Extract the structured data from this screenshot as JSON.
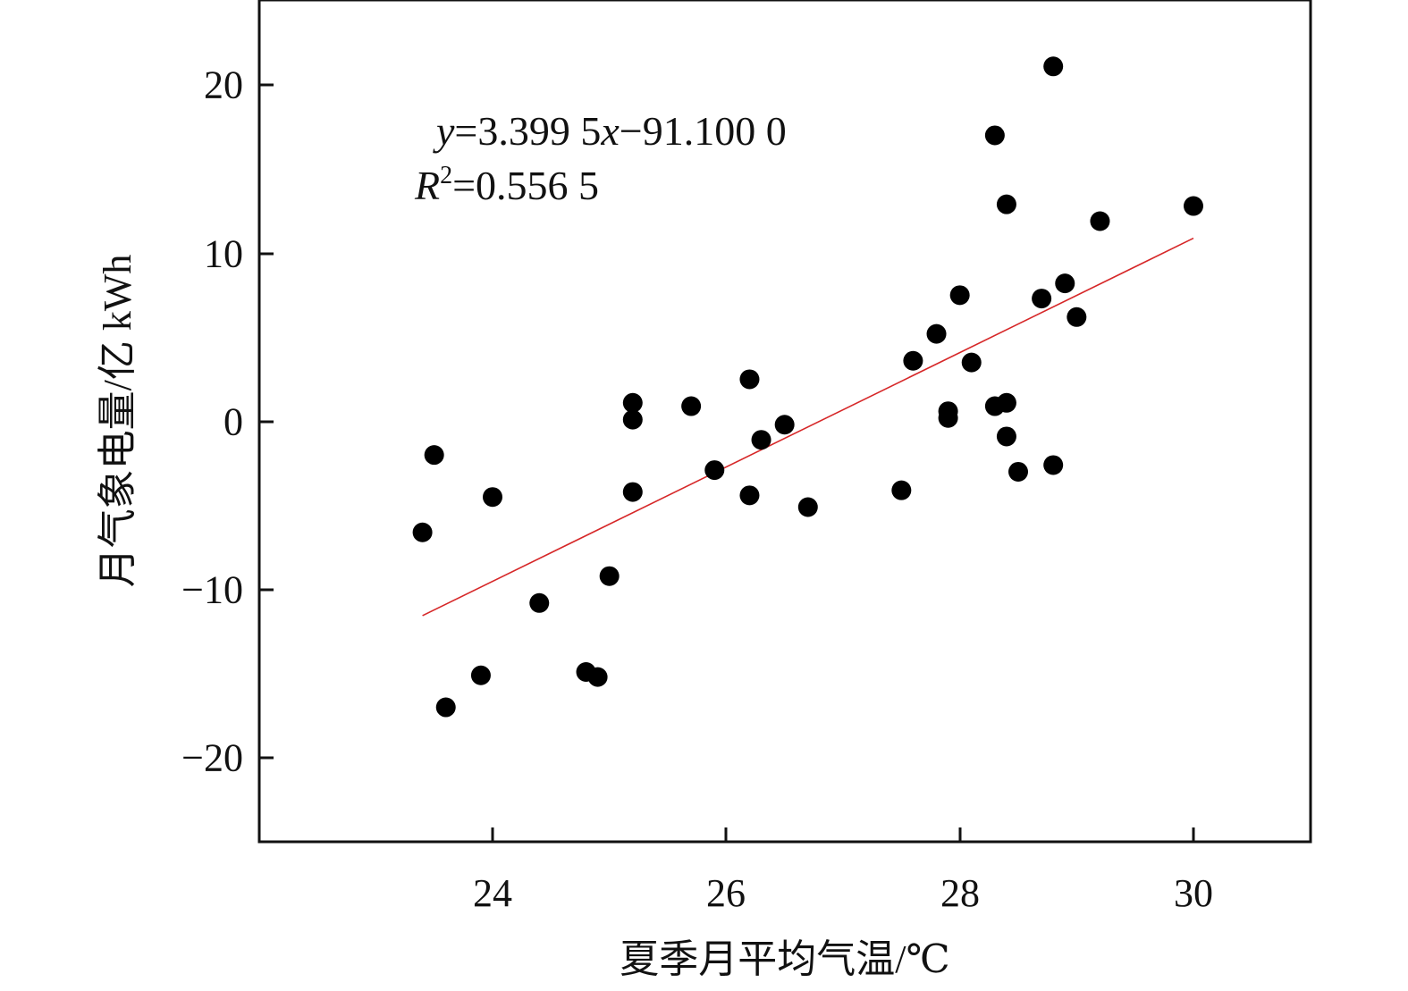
{
  "chart_data": {
    "type": "scatter",
    "xlabel": "夏季月平均气温/℃",
    "ylabel": "月气象电量/亿 kWh",
    "xlim": [
      22,
      31
    ],
    "ylim": [
      -25,
      25
    ],
    "x_ticks": [
      "24",
      "26",
      "28",
      "30"
    ],
    "y_ticks": [
      "20",
      "10",
      "0",
      "−10",
      "−20"
    ],
    "x_tick_values": [
      24,
      26,
      28,
      30
    ],
    "y_tick_values": [
      20,
      10,
      0,
      -10,
      -20
    ],
    "grid": false,
    "point_color": "#000000",
    "fit_line_color": "#d62728",
    "annotation": {
      "equation": {
        "y_var": "y",
        "equals_part": "=3.399 5",
        "x_var": "x",
        "rest": "−91.100 0"
      },
      "r2": {
        "r_var": "R",
        "sup": "2",
        "value": "=0.556 5"
      }
    },
    "fit": {
      "slope": 3.3995,
      "intercept": -91.1,
      "x_range": [
        23.4,
        30.0
      ]
    },
    "points": [
      [
        23.4,
        -6.6
      ],
      [
        23.5,
        -2.0
      ],
      [
        23.6,
        -17.0
      ],
      [
        23.9,
        -15.1
      ],
      [
        24.0,
        -4.5
      ],
      [
        24.4,
        -10.8
      ],
      [
        24.8,
        -14.9
      ],
      [
        24.9,
        -15.2
      ],
      [
        25.0,
        -9.2
      ],
      [
        25.2,
        1.1
      ],
      [
        25.2,
        0.1
      ],
      [
        25.2,
        -4.2
      ],
      [
        25.7,
        0.9
      ],
      [
        25.9,
        -2.9
      ],
      [
        26.2,
        2.5
      ],
      [
        26.2,
        -4.4
      ],
      [
        26.3,
        -1.1
      ],
      [
        26.5,
        -0.2
      ],
      [
        26.7,
        -5.1
      ],
      [
        27.5,
        -4.1
      ],
      [
        27.6,
        3.6
      ],
      [
        27.8,
        5.2
      ],
      [
        27.9,
        0.6
      ],
      [
        27.9,
        0.2
      ],
      [
        28.0,
        7.5
      ],
      [
        28.1,
        3.5
      ],
      [
        28.3,
        17.0
      ],
      [
        28.3,
        0.9
      ],
      [
        28.4,
        12.9
      ],
      [
        28.4,
        1.1
      ],
      [
        28.4,
        -0.9
      ],
      [
        28.5,
        -3.0
      ],
      [
        28.7,
        7.3
      ],
      [
        28.8,
        21.1
      ],
      [
        28.8,
        -2.6
      ],
      [
        28.9,
        8.2
      ],
      [
        29.0,
        6.2
      ],
      [
        29.2,
        11.9
      ],
      [
        30.0,
        12.8
      ]
    ]
  }
}
